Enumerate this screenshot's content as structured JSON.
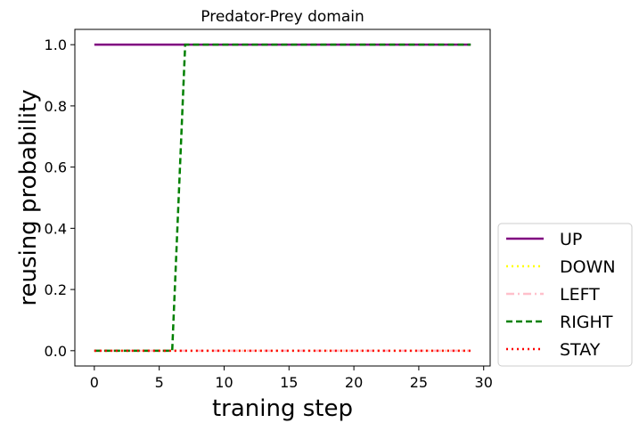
{
  "chart_data": {
    "type": "line",
    "title": "Predator-Prey domain",
    "xlabel": "traning step",
    "ylabel": "reusing probability",
    "xlim": [
      -1.5,
      30.5
    ],
    "ylim": [
      -0.05,
      1.05
    ],
    "xticks": [
      0,
      5,
      10,
      15,
      20,
      25,
      30
    ],
    "yticks": [
      0.0,
      0.2,
      0.4,
      0.6,
      0.8,
      1.0
    ],
    "xtick_labels": [
      "0",
      "5",
      "10",
      "15",
      "20",
      "25",
      "30"
    ],
    "ytick_labels": [
      "0.0",
      "0.2",
      "0.4",
      "0.6",
      "0.8",
      "1.0"
    ],
    "grid": false,
    "legend_position": "outside-lower-right",
    "series": [
      {
        "name": "UP",
        "color": "#800080",
        "dash": "solid",
        "x": [
          0,
          29
        ],
        "y": [
          1.0,
          1.0
        ]
      },
      {
        "name": "DOWN",
        "color": "#ffff00",
        "dash": "dotted",
        "x": [
          0,
          29
        ],
        "y": [
          0.0,
          0.0
        ]
      },
      {
        "name": "LEFT",
        "color": "#ffc0cb",
        "dash": "dashdot",
        "x": [
          0,
          29
        ],
        "y": [
          0.0,
          0.0
        ]
      },
      {
        "name": "RIGHT",
        "color": "#008000",
        "dash": "dashed",
        "x": [
          0,
          6,
          7,
          29
        ],
        "y": [
          0.0,
          0.0,
          1.0,
          1.0
        ]
      },
      {
        "name": "STAY",
        "color": "#ff0000",
        "dash": "dotted",
        "x": [
          0,
          29
        ],
        "y": [
          0.0,
          0.0
        ]
      }
    ]
  }
}
